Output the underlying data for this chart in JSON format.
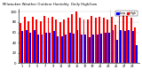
{
  "title": "Milwaukee Weather Outdoor Humidity",
  "subtitle": "Daily High/Low",
  "background_color": "#ffffff",
  "high_color": "#ff0000",
  "low_color": "#0000ff",
  "legend_high": "High",
  "legend_low": "Low",
  "ylim": [
    0,
    105
  ],
  "yticks": [
    0,
    20,
    40,
    60,
    80,
    100
  ],
  "yticklabels": [
    "0",
    "20",
    "40",
    "60",
    "80",
    "100"
  ],
  "vline_pos": 22.5,
  "highs": [
    78,
    90,
    82,
    90,
    85,
    82,
    92,
    88,
    90,
    85,
    80,
    85,
    88,
    95,
    100,
    88,
    85,
    85,
    92,
    88,
    90,
    88,
    85,
    90,
    75,
    95,
    95,
    92,
    88,
    70
  ],
  "lows": [
    62,
    65,
    60,
    65,
    55,
    55,
    60,
    60,
    62,
    52,
    52,
    55,
    60,
    58,
    65,
    55,
    55,
    50,
    55,
    55,
    58,
    60,
    60,
    65,
    45,
    65,
    62,
    65,
    62,
    35
  ]
}
